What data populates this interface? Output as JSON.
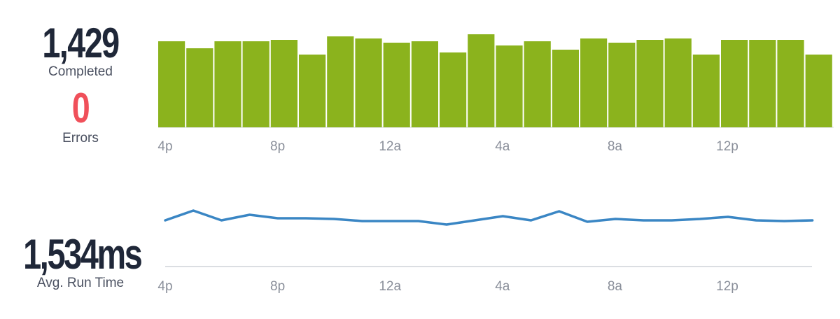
{
  "summary": {
    "completed_value": "1,429",
    "completed_label": "Completed",
    "errors_value": "0",
    "errors_label": "Errors",
    "avg_run_value": "1,534ms",
    "avg_run_label": "Avg. Run Time"
  },
  "colors": {
    "bar": "#8bb31d",
    "line": "#3a86c4",
    "error": "#f0505a",
    "axis": "#cfd3d8"
  },
  "chart_data": [
    {
      "type": "bar",
      "tick_labels": [
        "4p",
        "8p",
        "12a",
        "4a",
        "8a",
        "12p"
      ],
      "ylim": [
        0,
        135
      ],
      "values": [
        123,
        113,
        123,
        123,
        125,
        104,
        130,
        127,
        121,
        123,
        107,
        133,
        117,
        123,
        111,
        127,
        121,
        125,
        127,
        104,
        125,
        125,
        125,
        104
      ]
    },
    {
      "type": "line",
      "tick_labels": [
        "4p",
        "8p",
        "12a",
        "4a",
        "8a",
        "12p"
      ],
      "ylim": [
        0,
        86
      ],
      "values": [
        66,
        80,
        66,
        74,
        69,
        69,
        68,
        65,
        65,
        65,
        60,
        66,
        72,
        66,
        79,
        64,
        68,
        66,
        66,
        68,
        71,
        66,
        65,
        66
      ]
    }
  ]
}
